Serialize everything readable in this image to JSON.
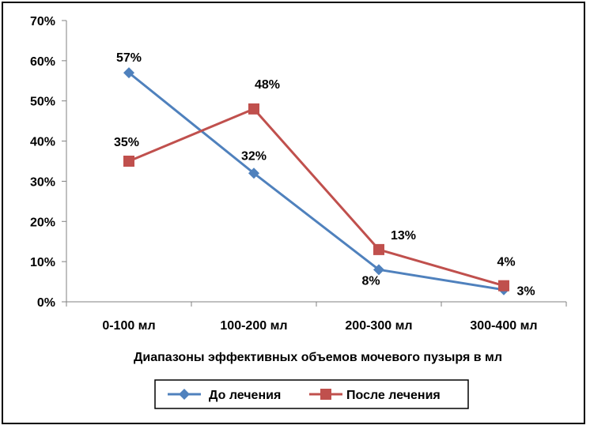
{
  "chart_data": {
    "type": "line",
    "categories": [
      "0-100 мл",
      "100-200 мл",
      "200-300 мл",
      "300-400 мл"
    ],
    "series": [
      {
        "name": "До лечения",
        "values": [
          57,
          32,
          8,
          3
        ],
        "labels": [
          "57%",
          "32%",
          "8%",
          "3%"
        ],
        "color": "#4F81BD",
        "marker": "diamond"
      },
      {
        "name": "После лечения",
        "values": [
          35,
          48,
          13,
          4
        ],
        "labels": [
          "35%",
          "48%",
          "13%",
          "4%"
        ],
        "color": "#C0504D",
        "marker": "square"
      }
    ],
    "y_ticks": [
      "0%",
      "10%",
      "20%",
      "30%",
      "40%",
      "50%",
      "60%",
      "70%"
    ],
    "ylim": [
      0,
      70
    ],
    "xlabel": "Диапазоны эффективных объемов мочевого пузыря в мл",
    "ylabel": "",
    "title": "",
    "grid": false,
    "legend": "bottom"
  }
}
